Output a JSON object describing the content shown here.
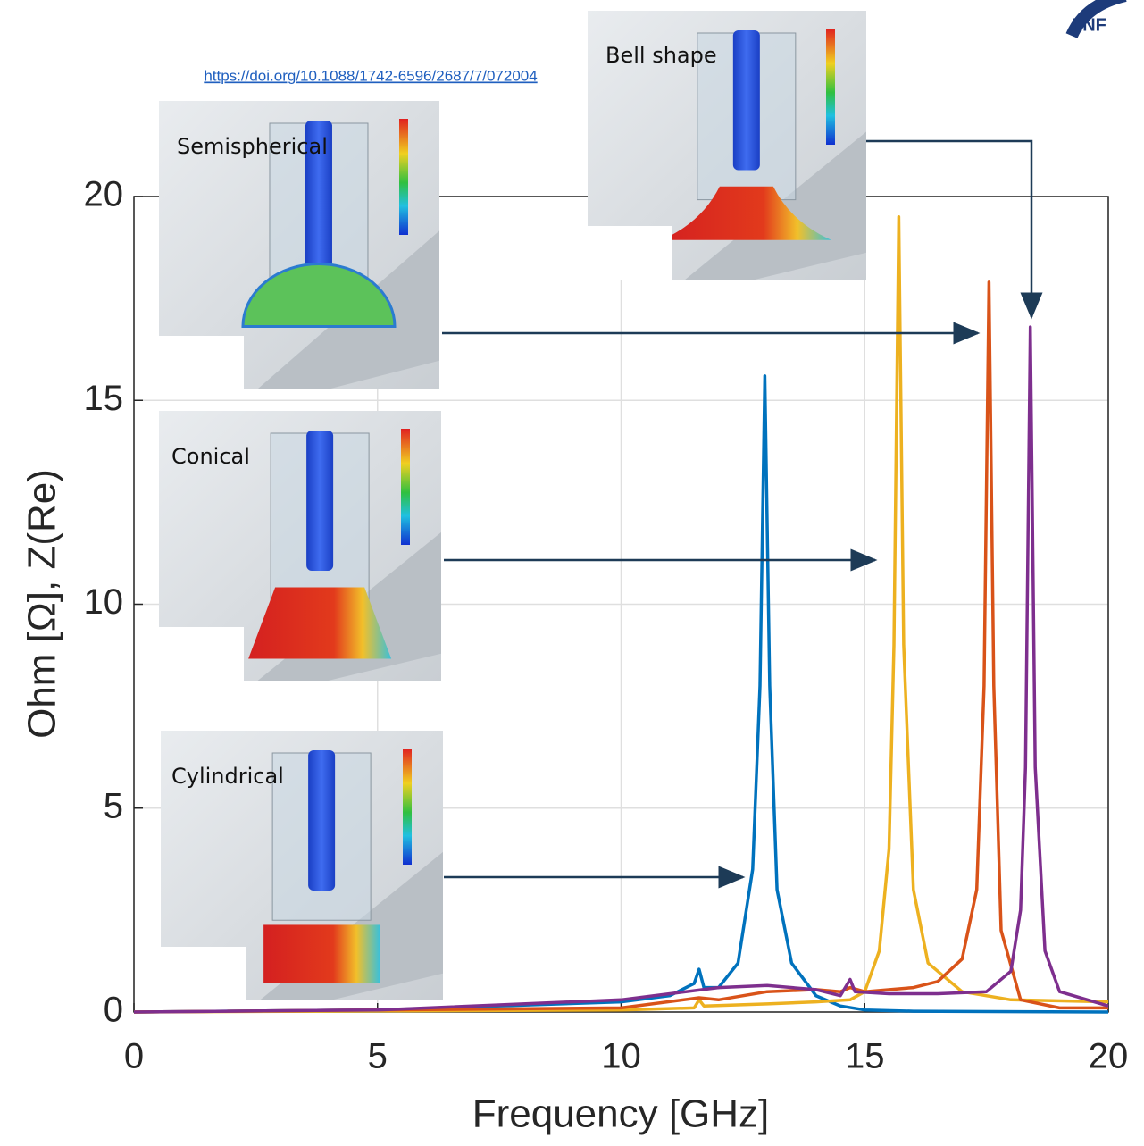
{
  "chart_data": {
    "type": "line",
    "xlabel": "Frequency [GHz]",
    "ylabel": "Ohm [Ω], Z(Re)",
    "xlim": [
      0,
      20
    ],
    "ylim": [
      0,
      20
    ],
    "xticks": [
      0,
      5,
      10,
      15,
      20
    ],
    "yticks": [
      0,
      5,
      10,
      15,
      20
    ],
    "grid": true,
    "series": [
      {
        "color": "#0072bd",
        "x": [
          0,
          5,
          10,
          11,
          11.5,
          11.6,
          11.7,
          12.0,
          12.4,
          12.7,
          12.85,
          12.95,
          13.05,
          13.2,
          13.5,
          14,
          14.5,
          15,
          16,
          20
        ],
        "values": [
          0,
          0.05,
          0.25,
          0.4,
          0.7,
          1.05,
          0.6,
          0.6,
          1.2,
          3.5,
          8,
          15.6,
          8,
          3,
          1.2,
          0.4,
          0.15,
          0.05,
          0.02,
          0
        ]
      },
      {
        "color": "#edb120",
        "x": [
          0,
          10,
          11.5,
          11.6,
          11.7,
          13,
          14,
          14.7,
          15,
          15.3,
          15.5,
          15.6,
          15.7,
          15.8,
          16,
          16.3,
          17,
          18,
          20
        ],
        "values": [
          0,
          0.05,
          0.1,
          0.3,
          0.15,
          0.2,
          0.25,
          0.3,
          0.5,
          1.5,
          4,
          9,
          19.5,
          9,
          3,
          1.2,
          0.5,
          0.3,
          0.25
        ]
      },
      {
        "color": "#d95319",
        "x": [
          0,
          10,
          11.6,
          12,
          13,
          14,
          14.5,
          14.7,
          15,
          16,
          16.5,
          17,
          17.3,
          17.45,
          17.55,
          17.65,
          17.8,
          18.2,
          19,
          20
        ],
        "values": [
          0,
          0.1,
          0.35,
          0.3,
          0.5,
          0.55,
          0.5,
          0.6,
          0.5,
          0.6,
          0.75,
          1.3,
          3,
          8,
          17.9,
          8,
          2,
          0.3,
          0.1,
          0.1
        ]
      },
      {
        "color": "#7e2f8e",
        "x": [
          0,
          5,
          10,
          11,
          12,
          13,
          14,
          14.5,
          14.7,
          14.8,
          15.5,
          16.5,
          17.5,
          18,
          18.2,
          18.3,
          18.4,
          18.5,
          18.7,
          19,
          20
        ],
        "values": [
          0,
          0.05,
          0.3,
          0.45,
          0.6,
          0.65,
          0.55,
          0.4,
          0.8,
          0.5,
          0.45,
          0.45,
          0.5,
          1,
          2.5,
          6,
          16.8,
          6,
          1.5,
          0.5,
          0.15
        ]
      }
    ],
    "annotations": [
      "Semispherical",
      "Conical",
      "Cylindrical",
      "Bell shape"
    ],
    "source_link": "https://doi.org/10.1088/1742-6596/2687/7/072004",
    "logo": "LNF"
  }
}
